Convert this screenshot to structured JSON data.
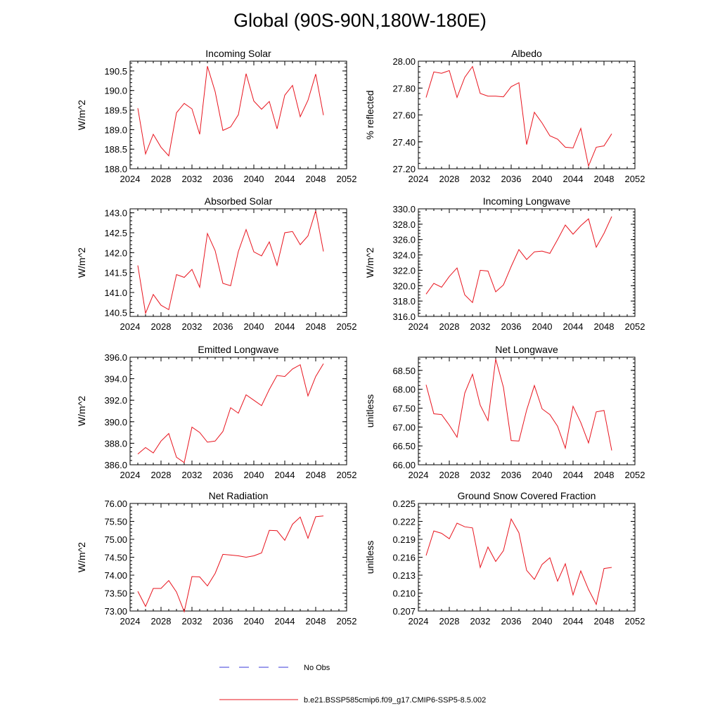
{
  "figure": {
    "title": "Global (90S-90N,180W-180E)"
  },
  "legend": {
    "entries": [
      {
        "label": "No Obs",
        "color": "#3a3ad8",
        "dash": true
      },
      {
        "label": "b.e21.BSSP585cmip6.f09_g17.CMIP6-SSP5-8.5.002",
        "color": "#e8141e",
        "dash": false
      }
    ]
  },
  "chart_data": [
    {
      "type": "line",
      "title": "Incoming Solar",
      "ylabel": "W/m^2",
      "xlim": [
        2024,
        2052
      ],
      "ylim": [
        188.0,
        190.75
      ],
      "xticks": [
        2024,
        2028,
        2032,
        2036,
        2040,
        2044,
        2048,
        2052
      ],
      "yticks": [
        188.0,
        188.5,
        189.0,
        189.5,
        190.0,
        190.5
      ],
      "ytick_labels": [
        "188.0",
        "188.5",
        "189.0",
        "189.5",
        "190.0",
        "190.5"
      ],
      "x": [
        2025,
        2026,
        2027,
        2028,
        2029,
        2030,
        2031,
        2032,
        2033,
        2034,
        2035,
        2036,
        2037,
        2038,
        2039,
        2040,
        2041,
        2042,
        2043,
        2044,
        2045,
        2046,
        2047,
        2048,
        2049
      ],
      "series": [
        {
          "color": "#e8141e",
          "values": [
            189.55,
            188.38,
            188.88,
            188.55,
            188.33,
            189.43,
            189.67,
            189.53,
            188.88,
            190.62,
            189.97,
            188.98,
            189.07,
            189.38,
            190.43,
            189.73,
            189.52,
            189.72,
            189.02,
            189.88,
            190.13,
            189.33,
            189.75,
            190.42,
            189.37
          ]
        }
      ]
    },
    {
      "type": "line",
      "title": "Albedo",
      "ylabel": "% reflected",
      "xlim": [
        2024,
        2052
      ],
      "ylim": [
        27.2,
        28.0
      ],
      "xticks": [
        2024,
        2028,
        2032,
        2036,
        2040,
        2044,
        2048,
        2052
      ],
      "yticks": [
        27.2,
        27.4,
        27.6,
        27.8,
        28.0
      ],
      "ytick_labels": [
        "27.20",
        "27.40",
        "27.60",
        "27.80",
        "28.00"
      ],
      "x": [
        2025,
        2026,
        2027,
        2028,
        2029,
        2030,
        2031,
        2032,
        2033,
        2034,
        2035,
        2036,
        2037,
        2038,
        2039,
        2040,
        2041,
        2042,
        2043,
        2044,
        2045,
        2046,
        2047,
        2048,
        2049
      ],
      "series": [
        {
          "color": "#e8141e",
          "values": [
            27.73,
            27.92,
            27.91,
            27.93,
            27.73,
            27.88,
            27.96,
            27.76,
            27.74,
            27.74,
            27.735,
            27.81,
            27.84,
            27.38,
            27.62,
            27.54,
            27.445,
            27.42,
            27.36,
            27.355,
            27.5,
            27.22,
            27.36,
            27.37,
            27.46
          ]
        }
      ]
    },
    {
      "type": "line",
      "title": "Absorbed Solar",
      "ylabel": "W/m^2",
      "xlim": [
        2024,
        2052
      ],
      "ylim": [
        140.4,
        143.1
      ],
      "xticks": [
        2024,
        2028,
        2032,
        2036,
        2040,
        2044,
        2048,
        2052
      ],
      "yticks": [
        140.5,
        141.0,
        141.5,
        142.0,
        142.5,
        143.0
      ],
      "ytick_labels": [
        "140.5",
        "141.0",
        "141.5",
        "142.0",
        "142.5",
        "143.0"
      ],
      "x": [
        2025,
        2026,
        2027,
        2028,
        2029,
        2030,
        2031,
        2032,
        2033,
        2034,
        2035,
        2036,
        2037,
        2038,
        2039,
        2040,
        2041,
        2042,
        2043,
        2044,
        2045,
        2046,
        2047,
        2048,
        2049
      ],
      "series": [
        {
          "color": "#e8141e",
          "values": [
            141.68,
            140.48,
            140.95,
            140.68,
            140.57,
            141.45,
            141.38,
            141.58,
            141.13,
            142.48,
            142.05,
            141.23,
            141.17,
            142.03,
            142.58,
            142.02,
            141.92,
            142.27,
            141.68,
            142.5,
            142.53,
            142.2,
            142.42,
            143.05,
            142.03
          ]
        }
      ]
    },
    {
      "type": "line",
      "title": "Incoming Longwave",
      "ylabel": "W/m^2",
      "xlim": [
        2024,
        2052
      ],
      "ylim": [
        316.0,
        330.0
      ],
      "xticks": [
        2024,
        2028,
        2032,
        2036,
        2040,
        2044,
        2048,
        2052
      ],
      "yticks": [
        316.0,
        318.0,
        320.0,
        322.0,
        324.0,
        326.0,
        328.0,
        330.0
      ],
      "ytick_labels": [
        "316.0",
        "318.0",
        "320.0",
        "322.0",
        "324.0",
        "326.0",
        "328.0",
        "330.0"
      ],
      "x": [
        2025,
        2026,
        2027,
        2028,
        2029,
        2030,
        2031,
        2032,
        2033,
        2034,
        2035,
        2036,
        2037,
        2038,
        2039,
        2040,
        2041,
        2042,
        2043,
        2044,
        2045,
        2046,
        2047,
        2048,
        2049
      ],
      "series": [
        {
          "color": "#e8141e",
          "values": [
            318.9,
            320.3,
            319.8,
            321.2,
            322.3,
            318.8,
            317.8,
            322.0,
            321.9,
            319.2,
            320.1,
            322.5,
            324.7,
            323.4,
            324.4,
            324.5,
            324.2,
            326.0,
            327.9,
            326.7,
            327.8,
            328.7,
            325.0,
            326.8,
            329.0
          ]
        }
      ]
    },
    {
      "type": "line",
      "title": "Emitted Longwave",
      "ylabel": "W/m^2",
      "xlim": [
        2024,
        2052
      ],
      "ylim": [
        386.0,
        396.0
      ],
      "xticks": [
        2024,
        2028,
        2032,
        2036,
        2040,
        2044,
        2048,
        2052
      ],
      "yticks": [
        386.0,
        388.0,
        390.0,
        392.0,
        394.0,
        396.0
      ],
      "ytick_labels": [
        "386.0",
        "388.0",
        "390.0",
        "392.0",
        "394.0",
        "396.0"
      ],
      "x": [
        2025,
        2026,
        2027,
        2028,
        2029,
        2030,
        2031,
        2032,
        2033,
        2034,
        2035,
        2036,
        2037,
        2038,
        2039,
        2040,
        2041,
        2042,
        2043,
        2044,
        2045,
        2046,
        2047,
        2048,
        2049
      ],
      "series": [
        {
          "color": "#e8141e",
          "values": [
            387.0,
            387.6,
            387.1,
            388.2,
            388.9,
            386.7,
            386.2,
            389.5,
            389.0,
            388.1,
            388.2,
            389.1,
            391.3,
            390.8,
            392.5,
            392.0,
            391.5,
            393.0,
            394.3,
            394.2,
            394.9,
            395.3,
            392.4,
            394.2,
            395.4
          ]
        }
      ]
    },
    {
      "type": "line",
      "title": "Net Longwave",
      "ylabel": "unitless",
      "xlim": [
        2024,
        2052
      ],
      "ylim": [
        66.0,
        68.85
      ],
      "xticks": [
        2024,
        2028,
        2032,
        2036,
        2040,
        2044,
        2048,
        2052
      ],
      "yticks": [
        66.0,
        66.5,
        67.0,
        67.5,
        68.0,
        68.5
      ],
      "ytick_labels": [
        "66.00",
        "66.50",
        "67.00",
        "67.50",
        "68.00",
        "68.50"
      ],
      "x": [
        2025,
        2026,
        2027,
        2028,
        2029,
        2030,
        2031,
        2032,
        2033,
        2034,
        2035,
        2036,
        2037,
        2038,
        2039,
        2040,
        2041,
        2042,
        2043,
        2044,
        2045,
        2046,
        2047,
        2048,
        2049
      ],
      "series": [
        {
          "color": "#e8141e",
          "values": [
            68.12,
            67.35,
            67.33,
            67.05,
            66.73,
            67.9,
            68.4,
            67.58,
            67.17,
            68.8,
            68.05,
            66.64,
            66.63,
            67.45,
            68.1,
            67.48,
            67.33,
            67.02,
            66.44,
            67.55,
            67.12,
            66.58,
            67.4,
            67.44,
            66.38
          ]
        }
      ]
    },
    {
      "type": "line",
      "title": "Net Radiation",
      "ylabel": "W/m^2",
      "xlim": [
        2024,
        2052
      ],
      "ylim": [
        73.0,
        76.0
      ],
      "xticks": [
        2024,
        2028,
        2032,
        2036,
        2040,
        2044,
        2048,
        2052
      ],
      "yticks": [
        73.0,
        73.5,
        74.0,
        74.5,
        75.0,
        75.5,
        76.0
      ],
      "ytick_labels": [
        "73.00",
        "73.50",
        "74.00",
        "74.50",
        "75.00",
        "75.50",
        "76.00"
      ],
      "x": [
        2025,
        2026,
        2027,
        2028,
        2029,
        2030,
        2031,
        2032,
        2033,
        2034,
        2035,
        2036,
        2037,
        2038,
        2039,
        2040,
        2041,
        2042,
        2043,
        2044,
        2045,
        2046,
        2047,
        2048,
        2049
      ],
      "series": [
        {
          "color": "#e8141e",
          "values": [
            73.55,
            73.13,
            73.63,
            73.63,
            73.85,
            73.53,
            72.98,
            73.96,
            73.95,
            73.7,
            74.05,
            74.58,
            74.56,
            74.54,
            74.5,
            74.54,
            74.62,
            75.25,
            75.24,
            74.97,
            75.42,
            75.62,
            75.03,
            75.63,
            75.65
          ]
        }
      ]
    },
    {
      "type": "line",
      "title": "Ground Snow Covered Fraction",
      "ylabel": "unitless",
      "xlim": [
        2024,
        2052
      ],
      "ylim": [
        0.207,
        0.225
      ],
      "xticks": [
        2024,
        2028,
        2032,
        2036,
        2040,
        2044,
        2048,
        2052
      ],
      "yticks": [
        0.207,
        0.21,
        0.213,
        0.216,
        0.219,
        0.222,
        0.225
      ],
      "ytick_labels": [
        "0.207",
        "0.210",
        "0.213",
        "0.216",
        "0.219",
        "0.222",
        "0.225"
      ],
      "x": [
        2025,
        2026,
        2027,
        2028,
        2029,
        2030,
        2031,
        2032,
        2033,
        2034,
        2035,
        2036,
        2037,
        2038,
        2039,
        2040,
        2041,
        2042,
        2043,
        2044,
        2045,
        2046,
        2047,
        2048,
        2049
      ],
      "series": [
        {
          "color": "#e8141e",
          "values": [
            0.2163,
            0.2204,
            0.22,
            0.2191,
            0.2217,
            0.2211,
            0.2209,
            0.2143,
            0.2177,
            0.2153,
            0.2171,
            0.2224,
            0.2201,
            0.2138,
            0.2123,
            0.2148,
            0.2159,
            0.212,
            0.2149,
            0.2097,
            0.2137,
            0.2106,
            0.2081,
            0.2141,
            0.2143
          ]
        }
      ]
    }
  ]
}
